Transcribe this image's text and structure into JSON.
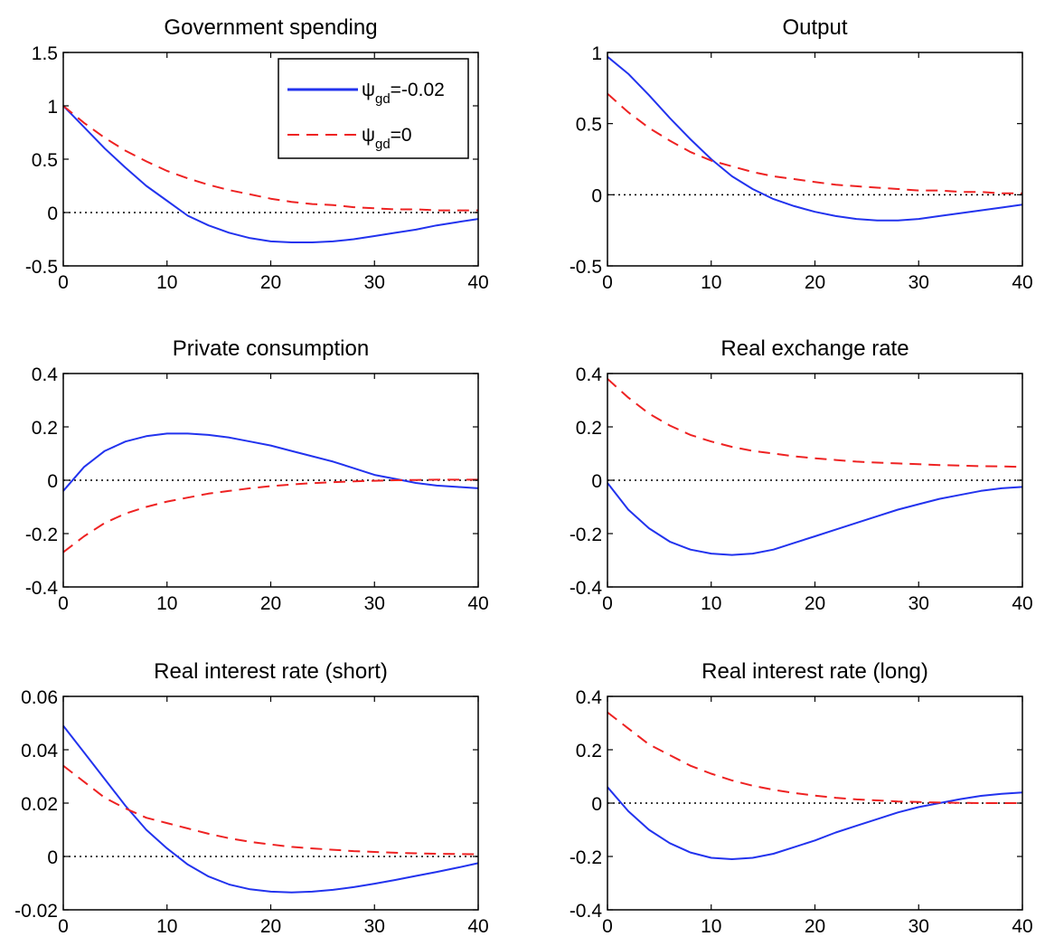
{
  "chart_data": [
    {
      "type": "line",
      "title": "Government spending",
      "xlim": [
        0,
        40
      ],
      "ylim": [
        -0.5,
        1.5
      ],
      "xticks": [
        0,
        10,
        20,
        30,
        40
      ],
      "yticks": [
        -0.5,
        0,
        0.5,
        1,
        1.5
      ],
      "xtick_labels": [
        "0",
        "10",
        "20",
        "30",
        "40"
      ],
      "ytick_labels": [
        "-0.5",
        "0",
        "0.5",
        "1",
        "1.5"
      ],
      "zero_line": true,
      "legend": {
        "placement": "top-right",
        "entries": [
          {
            "label_main": "ψ",
            "label_sub": "gd",
            "label_rest": "=-0.02",
            "color": "#2233ee",
            "dash": "solid"
          },
          {
            "label_main": "ψ",
            "label_sub": "gd",
            "label_rest": "=0",
            "color": "#ee2222",
            "dash": "dashed"
          }
        ]
      },
      "series": [
        {
          "color": "#2233ee",
          "dash": "solid",
          "x": [
            0,
            2,
            4,
            6,
            8,
            10,
            12,
            14,
            16,
            18,
            20,
            22,
            24,
            26,
            28,
            30,
            32,
            34,
            36,
            38,
            40
          ],
          "values": [
            1.0,
            0.8,
            0.6,
            0.42,
            0.25,
            0.11,
            -0.03,
            -0.12,
            -0.19,
            -0.24,
            -0.27,
            -0.28,
            -0.28,
            -0.27,
            -0.25,
            -0.22,
            -0.19,
            -0.16,
            -0.12,
            -0.09,
            -0.06
          ]
        },
        {
          "color": "#ee2222",
          "dash": "dashed",
          "x": [
            0,
            2,
            4,
            6,
            8,
            10,
            12,
            14,
            16,
            18,
            20,
            22,
            24,
            26,
            28,
            30,
            32,
            34,
            36,
            38,
            40
          ],
          "values": [
            1.0,
            0.84,
            0.7,
            0.58,
            0.48,
            0.39,
            0.32,
            0.26,
            0.21,
            0.17,
            0.13,
            0.1,
            0.08,
            0.07,
            0.05,
            0.04,
            0.03,
            0.03,
            0.02,
            0.02,
            0.02
          ]
        }
      ]
    },
    {
      "type": "line",
      "title": "Output",
      "xlim": [
        0,
        40
      ],
      "ylim": [
        -0.5,
        1
      ],
      "xticks": [
        0,
        10,
        20,
        30,
        40
      ],
      "yticks": [
        -0.5,
        0,
        0.5,
        1
      ],
      "xtick_labels": [
        "0",
        "10",
        "20",
        "30",
        "40"
      ],
      "ytick_labels": [
        "-0.5",
        "0",
        "0.5",
        "1"
      ],
      "zero_line": true,
      "series": [
        {
          "color": "#2233ee",
          "dash": "solid",
          "x": [
            0,
            2,
            4,
            6,
            8,
            10,
            12,
            14,
            16,
            18,
            20,
            22,
            24,
            26,
            28,
            30,
            32,
            34,
            36,
            38,
            40
          ],
          "values": [
            0.97,
            0.85,
            0.7,
            0.54,
            0.39,
            0.25,
            0.13,
            0.04,
            -0.03,
            -0.08,
            -0.12,
            -0.15,
            -0.17,
            -0.18,
            -0.18,
            -0.17,
            -0.15,
            -0.13,
            -0.11,
            -0.09,
            -0.07
          ]
        },
        {
          "color": "#ee2222",
          "dash": "dashed",
          "x": [
            0,
            2,
            4,
            6,
            8,
            10,
            12,
            14,
            16,
            18,
            20,
            22,
            24,
            26,
            28,
            30,
            32,
            34,
            36,
            38,
            40
          ],
          "values": [
            0.71,
            0.58,
            0.47,
            0.38,
            0.3,
            0.24,
            0.2,
            0.16,
            0.13,
            0.11,
            0.09,
            0.07,
            0.06,
            0.05,
            0.04,
            0.03,
            0.03,
            0.02,
            0.02,
            0.01,
            0.01
          ]
        }
      ]
    },
    {
      "type": "line",
      "title": "Private consumption",
      "xlim": [
        0,
        40
      ],
      "ylim": [
        -0.4,
        0.4
      ],
      "xticks": [
        0,
        10,
        20,
        30,
        40
      ],
      "yticks": [
        -0.4,
        -0.2,
        0,
        0.2,
        0.4
      ],
      "xtick_labels": [
        "0",
        "10",
        "20",
        "30",
        "40"
      ],
      "ytick_labels": [
        "-0.4",
        "-0.2",
        "0",
        "0.2",
        "0.4"
      ],
      "zero_line": true,
      "series": [
        {
          "color": "#2233ee",
          "dash": "solid",
          "x": [
            0,
            2,
            4,
            6,
            8,
            10,
            12,
            14,
            16,
            18,
            20,
            22,
            24,
            26,
            28,
            30,
            32,
            34,
            36,
            38,
            40
          ],
          "values": [
            -0.04,
            0.05,
            0.11,
            0.145,
            0.165,
            0.175,
            0.175,
            0.17,
            0.16,
            0.145,
            0.13,
            0.11,
            0.09,
            0.07,
            0.045,
            0.02,
            0.005,
            -0.01,
            -0.02,
            -0.025,
            -0.03
          ]
        },
        {
          "color": "#ee2222",
          "dash": "dashed",
          "x": [
            0,
            2,
            4,
            6,
            8,
            10,
            12,
            14,
            16,
            18,
            20,
            22,
            24,
            26,
            28,
            30,
            32,
            34,
            36,
            38,
            40
          ],
          "values": [
            -0.27,
            -0.21,
            -0.16,
            -0.125,
            -0.1,
            -0.08,
            -0.065,
            -0.05,
            -0.04,
            -0.03,
            -0.022,
            -0.016,
            -0.011,
            -0.007,
            -0.004,
            -0.002,
            0.0,
            0.001,
            0.002,
            0.002,
            0.002
          ]
        }
      ]
    },
    {
      "type": "line",
      "title": "Real exchange rate",
      "xlim": [
        0,
        40
      ],
      "ylim": [
        -0.4,
        0.4
      ],
      "xticks": [
        0,
        10,
        20,
        30,
        40
      ],
      "yticks": [
        -0.4,
        -0.2,
        0,
        0.2,
        0.4
      ],
      "xtick_labels": [
        "0",
        "10",
        "20",
        "30",
        "40"
      ],
      "ytick_labels": [
        "-0.4",
        "-0.2",
        "0",
        "0.2",
        "0.4"
      ],
      "zero_line": true,
      "series": [
        {
          "color": "#2233ee",
          "dash": "solid",
          "x": [
            0,
            2,
            4,
            6,
            8,
            10,
            12,
            14,
            16,
            18,
            20,
            22,
            24,
            26,
            28,
            30,
            32,
            34,
            36,
            38,
            40
          ],
          "values": [
            -0.01,
            -0.11,
            -0.18,
            -0.23,
            -0.26,
            -0.275,
            -0.28,
            -0.275,
            -0.26,
            -0.235,
            -0.21,
            -0.185,
            -0.16,
            -0.135,
            -0.11,
            -0.09,
            -0.07,
            -0.055,
            -0.04,
            -0.03,
            -0.025
          ]
        },
        {
          "color": "#ee2222",
          "dash": "dashed",
          "x": [
            0,
            2,
            4,
            6,
            8,
            10,
            12,
            14,
            16,
            18,
            20,
            22,
            24,
            26,
            28,
            30,
            32,
            34,
            36,
            38,
            40
          ],
          "values": [
            0.38,
            0.31,
            0.25,
            0.205,
            0.17,
            0.145,
            0.125,
            0.11,
            0.1,
            0.09,
            0.082,
            0.076,
            0.07,
            0.066,
            0.063,
            0.06,
            0.057,
            0.055,
            0.053,
            0.052,
            0.05
          ]
        }
      ]
    },
    {
      "type": "line",
      "title": "Real interest rate (short)",
      "xlim": [
        0,
        40
      ],
      "ylim": [
        -0.02,
        0.06
      ],
      "xticks": [
        0,
        10,
        20,
        30,
        40
      ],
      "yticks": [
        -0.02,
        0,
        0.02,
        0.04,
        0.06
      ],
      "xtick_labels": [
        "0",
        "10",
        "20",
        "30",
        "40"
      ],
      "ytick_labels": [
        "-0.02",
        "0",
        "0.02",
        "0.04",
        "0.06"
      ],
      "zero_line": true,
      "series": [
        {
          "color": "#2233ee",
          "dash": "solid",
          "x": [
            0,
            2,
            4,
            6,
            8,
            10,
            12,
            14,
            16,
            18,
            20,
            22,
            24,
            26,
            28,
            30,
            32,
            34,
            36,
            38,
            40
          ],
          "values": [
            0.049,
            0.039,
            0.029,
            0.019,
            0.01,
            0.003,
            -0.003,
            -0.0075,
            -0.0105,
            -0.0123,
            -0.0132,
            -0.0135,
            -0.0132,
            -0.0125,
            -0.0115,
            -0.0102,
            -0.0088,
            -0.0073,
            -0.0058,
            -0.0042,
            -0.0025
          ]
        },
        {
          "color": "#ee2222",
          "dash": "dashed",
          "x": [
            0,
            2,
            4,
            6,
            8,
            10,
            12,
            14,
            16,
            18,
            20,
            22,
            24,
            26,
            28,
            30,
            32,
            34,
            36,
            38,
            40
          ],
          "values": [
            0.034,
            0.028,
            0.022,
            0.018,
            0.0145,
            0.0125,
            0.0105,
            0.0085,
            0.0068,
            0.0055,
            0.0045,
            0.0036,
            0.003,
            0.0025,
            0.002,
            0.0017,
            0.0014,
            0.0012,
            0.001,
            0.0009,
            0.0008
          ]
        }
      ]
    },
    {
      "type": "line",
      "title": "Real interest rate (long)",
      "xlim": [
        0,
        40
      ],
      "ylim": [
        -0.4,
        0.4
      ],
      "xticks": [
        0,
        10,
        20,
        30,
        40
      ],
      "yticks": [
        -0.4,
        -0.2,
        0,
        0.2,
        0.4
      ],
      "xtick_labels": [
        "0",
        "10",
        "20",
        "30",
        "40"
      ],
      "ytick_labels": [
        "-0.4",
        "-0.2",
        "0",
        "0.2",
        "0.4"
      ],
      "zero_line": true,
      "series": [
        {
          "color": "#2233ee",
          "dash": "solid",
          "x": [
            0,
            2,
            4,
            6,
            8,
            10,
            12,
            14,
            16,
            18,
            20,
            22,
            24,
            26,
            28,
            30,
            32,
            34,
            36,
            38,
            40
          ],
          "values": [
            0.06,
            -0.03,
            -0.1,
            -0.15,
            -0.185,
            -0.205,
            -0.21,
            -0.205,
            -0.19,
            -0.165,
            -0.14,
            -0.11,
            -0.085,
            -0.06,
            -0.035,
            -0.015,
            0.0,
            0.015,
            0.027,
            0.035,
            0.04
          ]
        },
        {
          "color": "#ee2222",
          "dash": "dashed",
          "x": [
            0,
            2,
            4,
            6,
            8,
            10,
            12,
            14,
            16,
            18,
            20,
            22,
            24,
            26,
            28,
            30,
            32,
            34,
            36,
            38,
            40
          ],
          "values": [
            0.34,
            0.28,
            0.22,
            0.18,
            0.14,
            0.11,
            0.085,
            0.065,
            0.05,
            0.038,
            0.028,
            0.02,
            0.014,
            0.01,
            0.006,
            0.004,
            0.002,
            0.001,
            0.0,
            0.0,
            0.0
          ]
        }
      ]
    }
  ]
}
